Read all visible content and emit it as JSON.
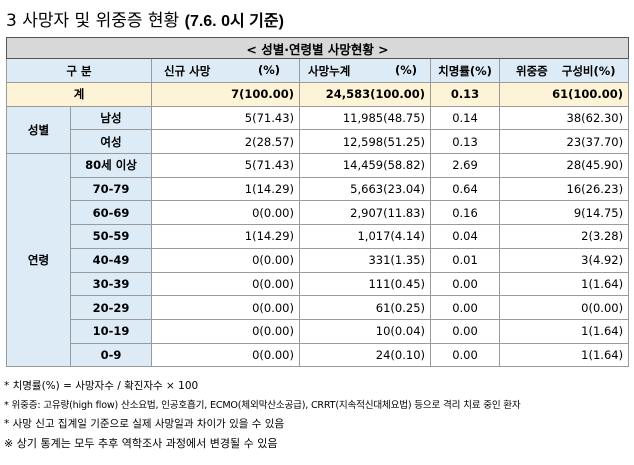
{
  "title": {
    "main": "3  사망자 및 위중증 현황",
    "sub": "(7.6. 0시 기준)"
  },
  "table": {
    "caption": "< 성별·연령별 사망현황 >",
    "headers": {
      "group": "구 분",
      "new_deaths": "신규 사망",
      "new_deaths_unit": "(%)",
      "cum_deaths": "사망누계",
      "cum_deaths_unit": "(%)",
      "fatality": "치명률(%)",
      "critical": "위중증",
      "critical_ratio": "구성비(%)"
    },
    "total": {
      "label": "계",
      "new": "7(100.00)",
      "cum": "24,583(100.00)",
      "fatality": "0.13",
      "critical": "61(100.00)"
    },
    "sex_group": "성별",
    "sex_rows": [
      {
        "label": "남성",
        "new": "5(71.43)",
        "cum": "11,985(48.75)",
        "fatality": "0.14",
        "critical": "38(62.30)"
      },
      {
        "label": "여성",
        "new": "2(28.57)",
        "cum": "12,598(51.25)",
        "fatality": "0.13",
        "critical": "23(37.70)"
      }
    ],
    "age_group": "연령",
    "age_rows": [
      {
        "label": "80세 이상",
        "new": "5(71.43)",
        "cum": "14,459(58.82)",
        "fatality": "2.69",
        "critical": "28(45.90)"
      },
      {
        "label": "70-79",
        "new": "1(14.29)",
        "cum": "5,663(23.04)",
        "fatality": "0.64",
        "critical": "16(26.23)"
      },
      {
        "label": "60-69",
        "new": "0(0.00)",
        "cum": "2,907(11.83)",
        "fatality": "0.16",
        "critical": "9(14.75)"
      },
      {
        "label": "50-59",
        "new": "1(14.29)",
        "cum": "1,017(4.14)",
        "fatality": "0.04",
        "critical": "2(3.28)"
      },
      {
        "label": "40-49",
        "new": "0(0.00)",
        "cum": "331(1.35)",
        "fatality": "0.01",
        "critical": "3(4.92)"
      },
      {
        "label": "30-39",
        "new": "0(0.00)",
        "cum": "111(0.45)",
        "fatality": "0.00",
        "critical": "1(1.64)"
      },
      {
        "label": "20-29",
        "new": "0(0.00)",
        "cum": "61(0.25)",
        "fatality": "0.00",
        "critical": "0(0.00)"
      },
      {
        "label": "10-19",
        "new": "0(0.00)",
        "cum": "10(0.04)",
        "fatality": "0.00",
        "critical": "1(1.64)"
      },
      {
        "label": "0-9",
        "new": "0(0.00)",
        "cum": "24(0.10)",
        "fatality": "0.00",
        "critical": "1(1.64)"
      }
    ]
  },
  "notes": [
    "* 치명률(%) = 사망자수 / 확진자수 × 100",
    "* 위중증: 고유량(high flow) 산소요법, 인공호흡기, ECMO(체외막산소공급), CRRT(지속적신대체요법) 등으로 격리 치료 중인 환자",
    "* 사망 신고 집계일 기준으로 실제 사망일과 차이가 있을 수 있음",
    "※ 상기 통계는 모두 추후 역학조사 과정에서 변경될 수 있음"
  ]
}
